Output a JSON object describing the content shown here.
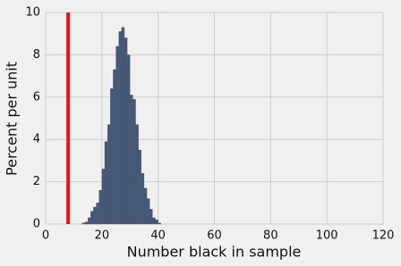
{
  "chart_data": {
    "type": "histogram",
    "xlabel": "Number black in sample",
    "ylabel": "Percent per unit",
    "bins": [
      13,
      14,
      15,
      16,
      17,
      18,
      19,
      20,
      21,
      22,
      23,
      24,
      25,
      26,
      27,
      28,
      29,
      30,
      31,
      32,
      33,
      34,
      35,
      36,
      37,
      38,
      39,
      40,
      41
    ],
    "counts": [
      0.05,
      0.1,
      0.3,
      0.6,
      0.8,
      1.0,
      1.6,
      2.6,
      3.9,
      4.7,
      6.4,
      7.3,
      8.4,
      9.1,
      9.3,
      8.8,
      8.0,
      6.1,
      5.9,
      4.7,
      3.5,
      2.4,
      1.7,
      1.2,
      0.7,
      0.3,
      0.2,
      0.05
    ],
    "color": "#475877",
    "vline": 8,
    "vline_color": "#e8141c",
    "xlim": [
      0,
      120
    ],
    "xticks": [
      0,
      20,
      40,
      60,
      80,
      100,
      120
    ],
    "ylim": [
      0,
      10
    ],
    "yticks": [
      0,
      2,
      4,
      6,
      8,
      10
    ],
    "grid": true
  }
}
